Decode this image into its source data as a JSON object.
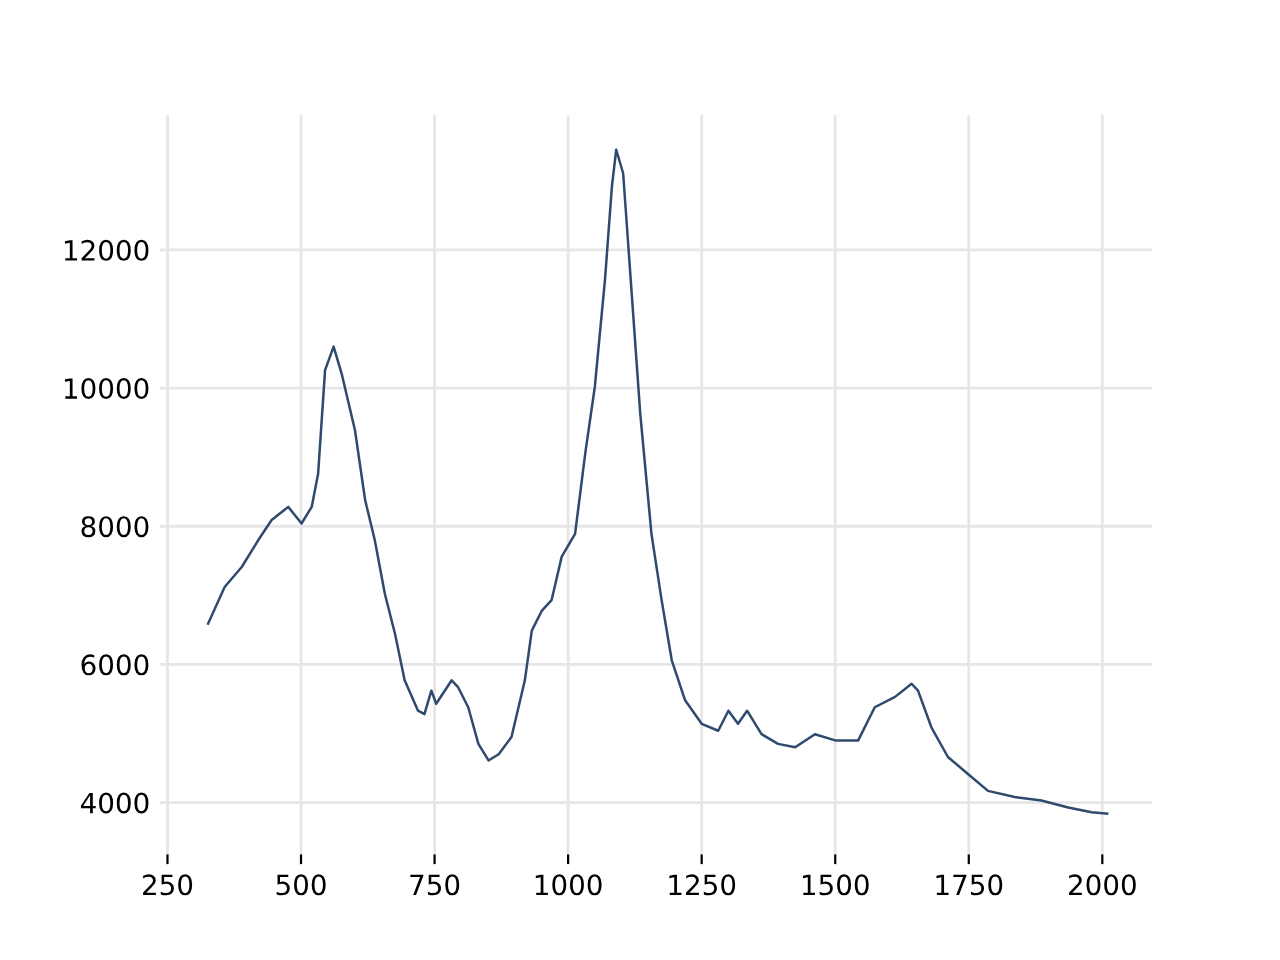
{
  "chart_data": {
    "type": "line",
    "x": [
      326,
      357,
      389,
      420,
      445,
      476,
      501,
      520,
      532,
      545,
      561,
      576,
      601,
      620,
      638,
      657,
      676,
      694,
      719,
      731,
      744,
      753,
      782,
      794,
      813,
      832,
      851,
      870,
      894,
      919,
      932,
      951,
      969,
      988,
      1013,
      1032,
      1050,
      1069,
      1082,
      1090,
      1103,
      1119,
      1135,
      1156,
      1175,
      1194,
      1219,
      1250,
      1281,
      1300,
      1318,
      1335,
      1362,
      1393,
      1425,
      1462,
      1500,
      1543,
      1574,
      1612,
      1643,
      1655,
      1680,
      1711,
      1749,
      1786,
      1836,
      1886,
      1936,
      1980,
      2009
    ],
    "series": [
      {
        "color": "#2e4a6e",
        "values": [
          6590,
          7120,
          7410,
          7800,
          8090,
          8280,
          8040,
          8280,
          8760,
          10260,
          10600,
          10210,
          9390,
          8380,
          7800,
          7020,
          6440,
          5770,
          5330,
          5280,
          5620,
          5430,
          5770,
          5670,
          5380,
          4850,
          4610,
          4700,
          4950,
          5770,
          6490,
          6780,
          6930,
          7560,
          7890,
          9050,
          10020,
          11570,
          12920,
          13450,
          13110,
          11370,
          9630,
          7890,
          6930,
          6060,
          5480,
          5140,
          5040,
          5330,
          5140,
          5330,
          4990,
          4850,
          4800,
          4990,
          4900,
          4900,
          5380,
          5530,
          5720,
          5620,
          5090,
          4660,
          4410,
          4170,
          4080,
          4030,
          3930,
          3860,
          3840
        ]
      }
    ],
    "xlim": [
      236,
      2093
    ],
    "ylim": [
      3250,
      13950
    ],
    "xticks": [
      250,
      500,
      750,
      1000,
      1250,
      1500,
      1750,
      2000
    ],
    "yticks": [
      4000,
      6000,
      8000,
      10000,
      12000
    ],
    "grid": true,
    "legend": false
  }
}
